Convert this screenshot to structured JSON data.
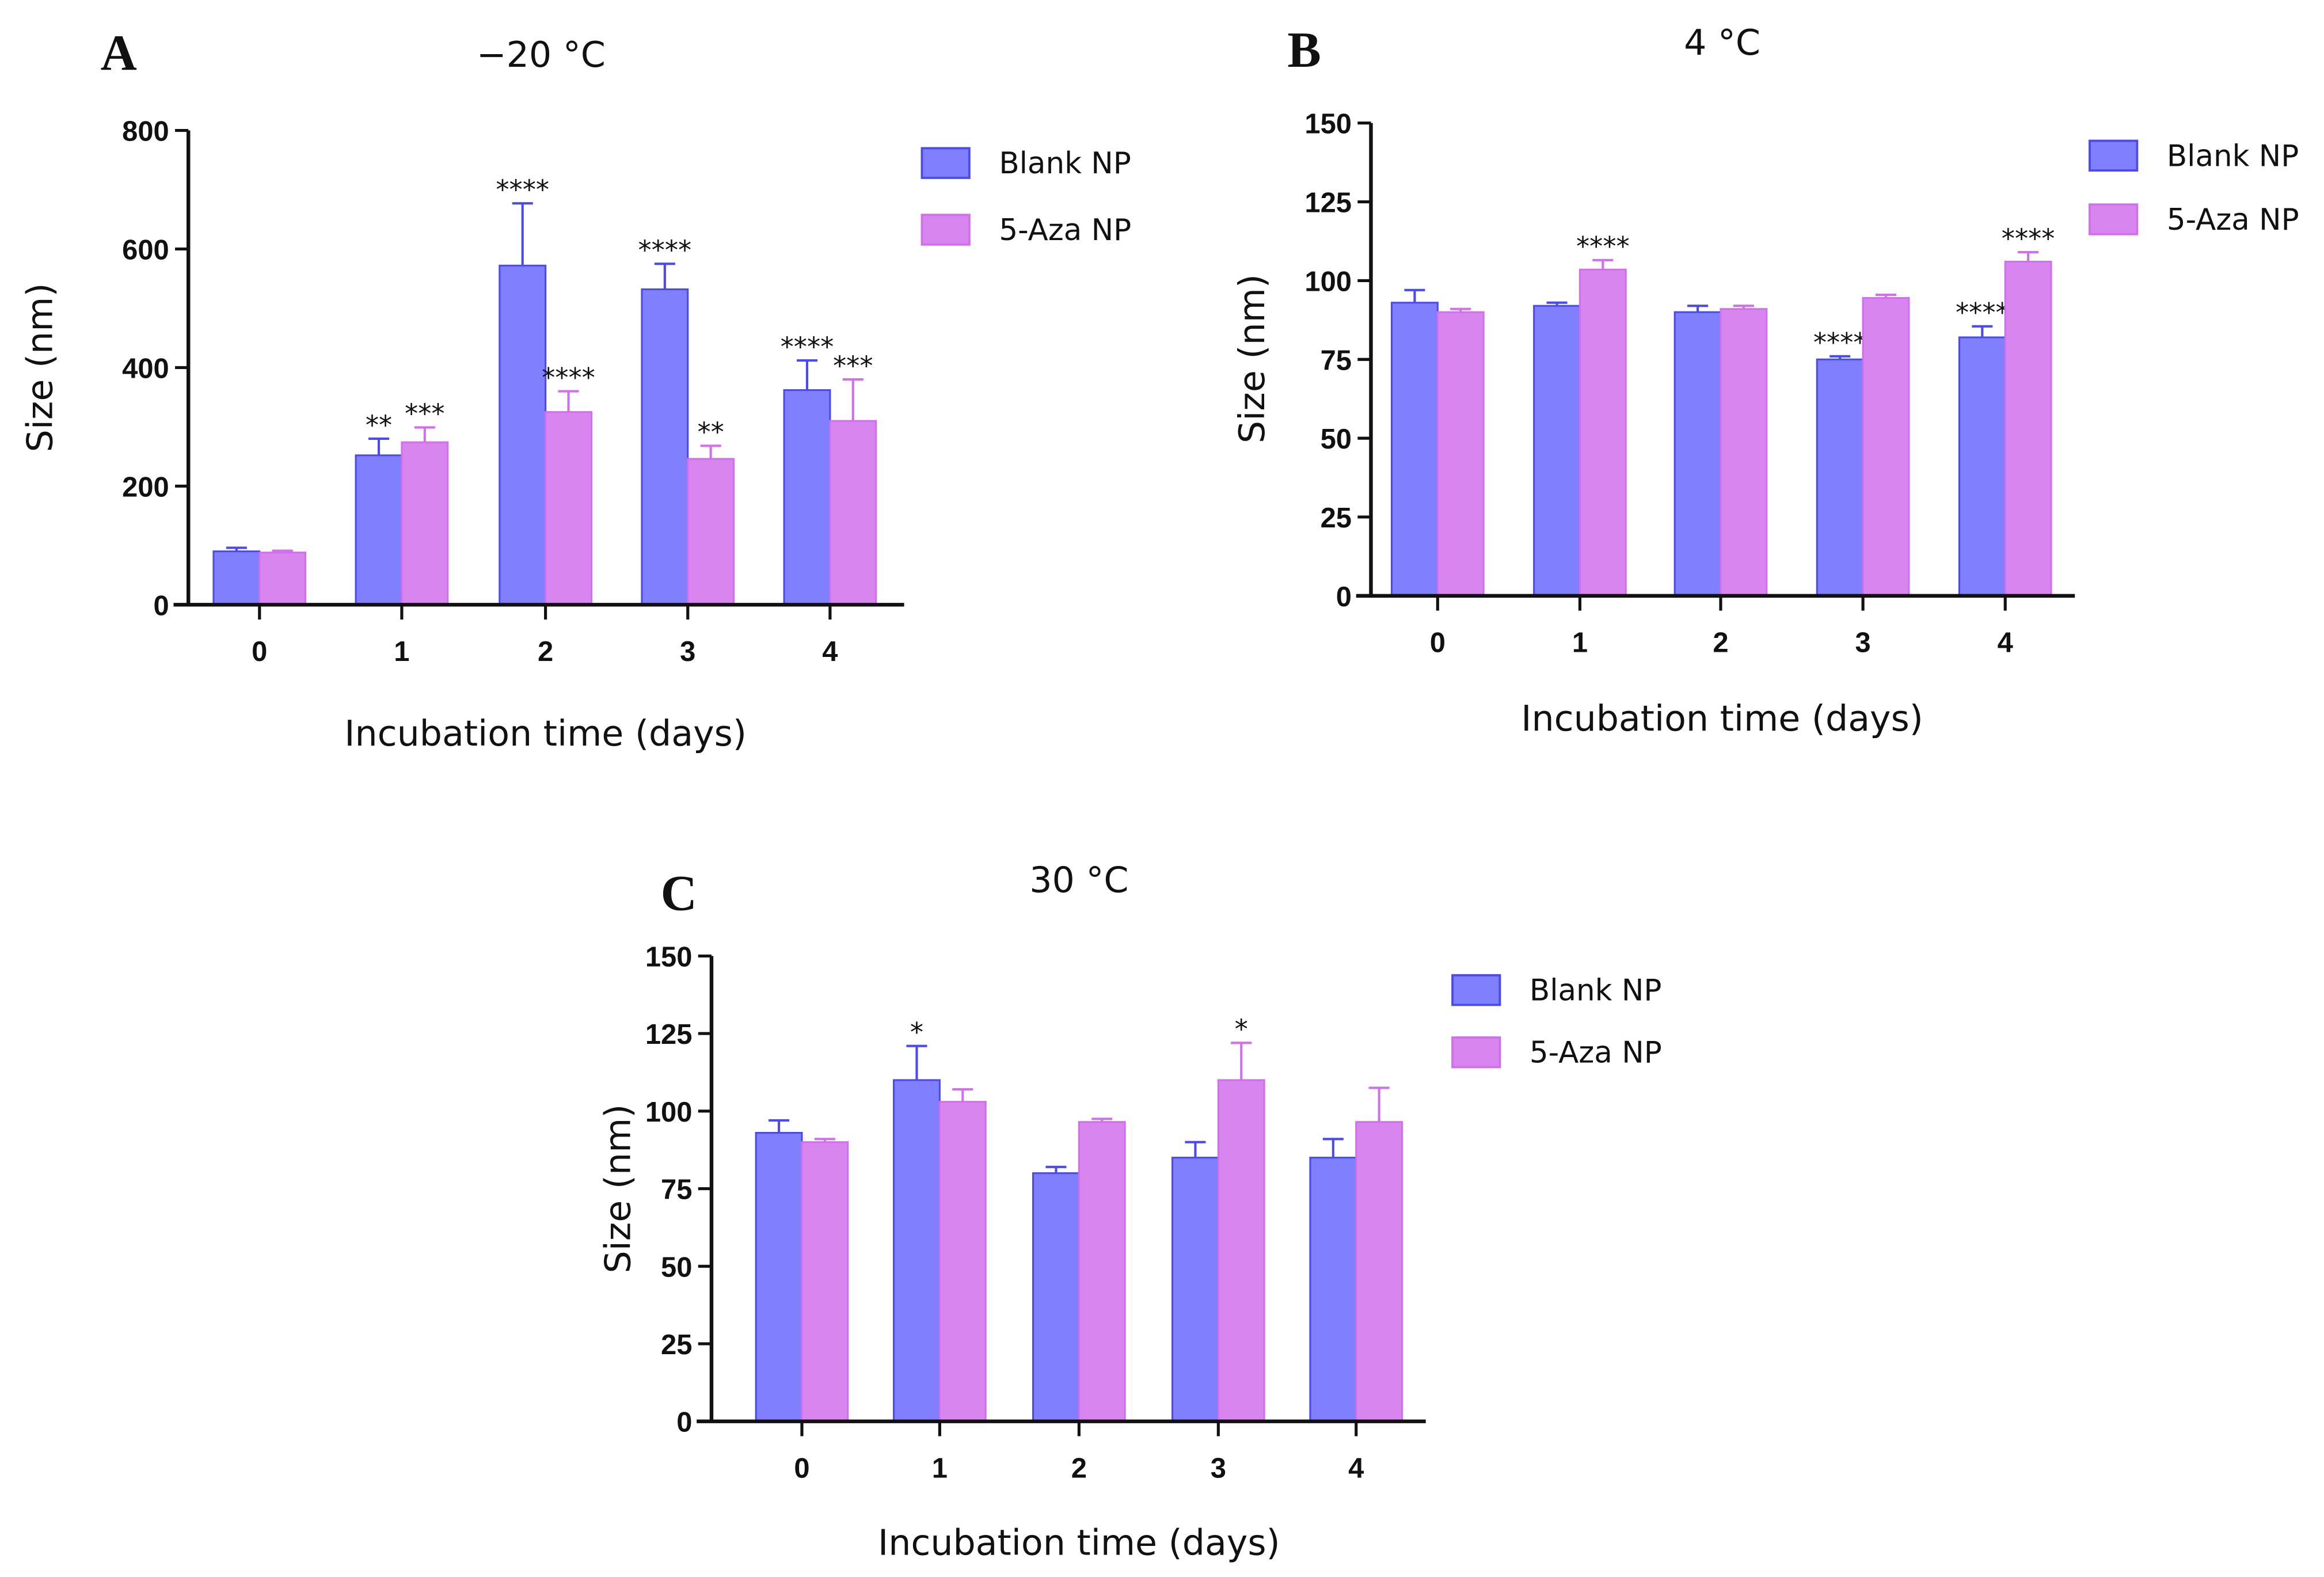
{
  "colors": {
    "blank": "#8080FF",
    "blank_edge": "#4A4AF0",
    "aza": "#D885F0",
    "aza_edge": "#D070EC"
  },
  "chart_data": [
    {
      "panel": "A",
      "type": "bar",
      "title": "−20 °C",
      "xlabel": "Incubation time (days)",
      "ylabel": "Size (nm)",
      "categories": [
        "0",
        "1",
        "2",
        "3",
        "4"
      ],
      "ylim": [
        0,
        800
      ],
      "yticks": [
        0,
        200,
        400,
        600,
        800
      ],
      "legend_position": "top-right",
      "series": [
        {
          "name": "Blank NP",
          "values": [
            90,
            252,
            572,
            532,
            362
          ],
          "errors": [
            6,
            28,
            105,
            43,
            50
          ],
          "significance": [
            "",
            "**",
            "****",
            "****",
            "****"
          ]
        },
        {
          "name": "5-Aza NP",
          "values": [
            88,
            274,
            325,
            246,
            310
          ],
          "errors": [
            3,
            25,
            35,
            22,
            70
          ],
          "significance": [
            "",
            "***",
            "****",
            "**",
            "***"
          ]
        }
      ]
    },
    {
      "panel": "B",
      "type": "bar",
      "title": "4 °C",
      "xlabel": "Incubation time (days)",
      "ylabel": "Size (nm)",
      "categories": [
        "0",
        "1",
        "2",
        "3",
        "4"
      ],
      "ylim": [
        0,
        150
      ],
      "yticks": [
        0,
        25,
        50,
        75,
        100,
        125,
        150
      ],
      "legend_position": "top-right",
      "series": [
        {
          "name": "Blank NP",
          "values": [
            93,
            92,
            90,
            75,
            82
          ],
          "errors": [
            4,
            1,
            2,
            1,
            3.5
          ],
          "significance": [
            "",
            "",
            "",
            "****",
            "****"
          ]
        },
        {
          "name": "5-Aza NP",
          "values": [
            90,
            103.5,
            91,
            94.5,
            106
          ],
          "errors": [
            1,
            3,
            1,
            1,
            3
          ],
          "significance": [
            "",
            "****",
            "",
            "",
            "****"
          ]
        }
      ]
    },
    {
      "panel": "C",
      "type": "bar",
      "title": "30 °C",
      "xlabel": "Incubation time (days)",
      "ylabel": "Size (nm)",
      "categories": [
        "0",
        "1",
        "2",
        "3",
        "4"
      ],
      "ylim": [
        0,
        150
      ],
      "yticks": [
        0,
        25,
        50,
        75,
        100,
        125,
        150
      ],
      "legend_position": "top-right",
      "series": [
        {
          "name": "Blank NP",
          "values": [
            93,
            110,
            80,
            85,
            85
          ],
          "errors": [
            4,
            11,
            2,
            5,
            6
          ],
          "significance": [
            "",
            "*",
            "",
            "",
            ""
          ]
        },
        {
          "name": "5-Aza NP",
          "values": [
            90,
            103,
            96.5,
            110,
            96.5
          ],
          "errors": [
            1,
            4,
            1,
            12,
            11
          ],
          "significance": [
            "",
            "",
            "",
            "*",
            ""
          ]
        }
      ]
    }
  ]
}
